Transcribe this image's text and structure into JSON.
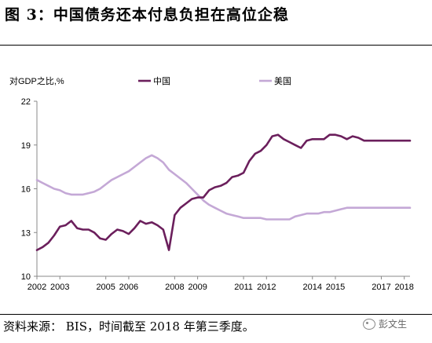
{
  "header": {
    "title": "图 3：中国债务还本付息负担在高位企稳"
  },
  "footer": {
    "source": "资料来源： BIS，时间截至 2018 年第三季度。",
    "watermark": "彭文生"
  },
  "colors": {
    "china": "#6b1f5c",
    "us": "#c4a8d6",
    "axis": "#888888"
  },
  "chart_data": {
    "type": "line",
    "ylabel": "对GDP之比,%",
    "ylim": [
      10,
      22
    ],
    "yticks": [
      10,
      13,
      16,
      19,
      22
    ],
    "xlim": [
      2002,
      2018.25
    ],
    "xticks": [
      "2002",
      "2003",
      "2005",
      "2006",
      "2008",
      "2009",
      "2011",
      "2012",
      "2014",
      "2015",
      "2017",
      "2018"
    ],
    "xtick_values": [
      2002,
      2003,
      2005,
      2006,
      2008,
      2009,
      2011,
      2012,
      2014,
      2015,
      2017,
      2018
    ],
    "grid": false,
    "legend": "top",
    "series": [
      {
        "name": "中国",
        "color": "#6b1f5c",
        "x": [
          2002.0,
          2002.25,
          2002.5,
          2002.75,
          2003.0,
          2003.25,
          2003.5,
          2003.75,
          2004.0,
          2004.25,
          2004.5,
          2004.75,
          2005.0,
          2005.25,
          2005.5,
          2005.75,
          2006.0,
          2006.25,
          2006.5,
          2006.75,
          2007.0,
          2007.25,
          2007.5,
          2007.75,
          2008.0,
          2008.25,
          2008.5,
          2008.75,
          2009.0,
          2009.25,
          2009.5,
          2009.75,
          2010.0,
          2010.25,
          2010.5,
          2010.75,
          2011.0,
          2011.25,
          2011.5,
          2011.75,
          2012.0,
          2012.25,
          2012.5,
          2012.75,
          2013.0,
          2013.25,
          2013.5,
          2013.75,
          2014.0,
          2014.25,
          2014.5,
          2014.75,
          2015.0,
          2015.25,
          2015.5,
          2015.75,
          2016.0,
          2016.25,
          2016.5,
          2016.75,
          2017.0,
          2017.25,
          2017.5,
          2017.75,
          2018.0,
          2018.25
        ],
        "values": [
          11.8,
          12.0,
          12.3,
          12.8,
          13.4,
          13.5,
          13.8,
          13.3,
          13.2,
          13.2,
          13.0,
          12.6,
          12.5,
          12.9,
          13.2,
          13.1,
          12.9,
          13.3,
          13.8,
          13.6,
          13.7,
          13.5,
          13.2,
          11.8,
          14.2,
          14.7,
          15.0,
          15.3,
          15.4,
          15.4,
          15.9,
          16.1,
          16.2,
          16.4,
          16.8,
          16.9,
          17.1,
          17.9,
          18.4,
          18.6,
          19.0,
          19.6,
          19.7,
          19.4,
          19.2,
          19.0,
          18.8,
          19.3,
          19.4,
          19.4,
          19.4,
          19.7,
          19.7,
          19.6,
          19.4,
          19.6,
          19.5,
          19.3,
          19.3,
          19.3,
          19.3,
          19.3,
          19.3,
          19.3,
          19.3,
          19.3
        ]
      },
      {
        "name": "美国",
        "color": "#c4a8d6",
        "x": [
          2002.0,
          2002.25,
          2002.5,
          2002.75,
          2003.0,
          2003.25,
          2003.5,
          2003.75,
          2004.0,
          2004.25,
          2004.5,
          2004.75,
          2005.0,
          2005.25,
          2005.5,
          2005.75,
          2006.0,
          2006.25,
          2006.5,
          2006.75,
          2007.0,
          2007.25,
          2007.5,
          2007.75,
          2008.0,
          2008.25,
          2008.5,
          2008.75,
          2009.0,
          2009.25,
          2009.5,
          2009.75,
          2010.0,
          2010.25,
          2010.5,
          2010.75,
          2011.0,
          2011.25,
          2011.5,
          2011.75,
          2012.0,
          2012.25,
          2012.5,
          2012.75,
          2013.0,
          2013.25,
          2013.5,
          2013.75,
          2014.0,
          2014.25,
          2014.5,
          2014.75,
          2015.0,
          2015.25,
          2015.5,
          2015.75,
          2016.0,
          2016.25,
          2016.5,
          2016.75,
          2017.0,
          2017.25,
          2017.5,
          2017.75,
          2018.0,
          2018.25
        ],
        "values": [
          16.6,
          16.4,
          16.2,
          16.0,
          15.9,
          15.7,
          15.6,
          15.6,
          15.6,
          15.7,
          15.8,
          16.0,
          16.3,
          16.6,
          16.8,
          17.0,
          17.2,
          17.5,
          17.8,
          18.1,
          18.3,
          18.1,
          17.8,
          17.3,
          17.0,
          16.7,
          16.4,
          16.0,
          15.6,
          15.2,
          14.9,
          14.7,
          14.5,
          14.3,
          14.2,
          14.1,
          14.0,
          14.0,
          14.0,
          14.0,
          13.9,
          13.9,
          13.9,
          13.9,
          13.9,
          14.1,
          14.2,
          14.3,
          14.3,
          14.3,
          14.4,
          14.4,
          14.5,
          14.6,
          14.7,
          14.7,
          14.7,
          14.7,
          14.7,
          14.7,
          14.7,
          14.7,
          14.7,
          14.7,
          14.7,
          14.7
        ]
      }
    ]
  }
}
